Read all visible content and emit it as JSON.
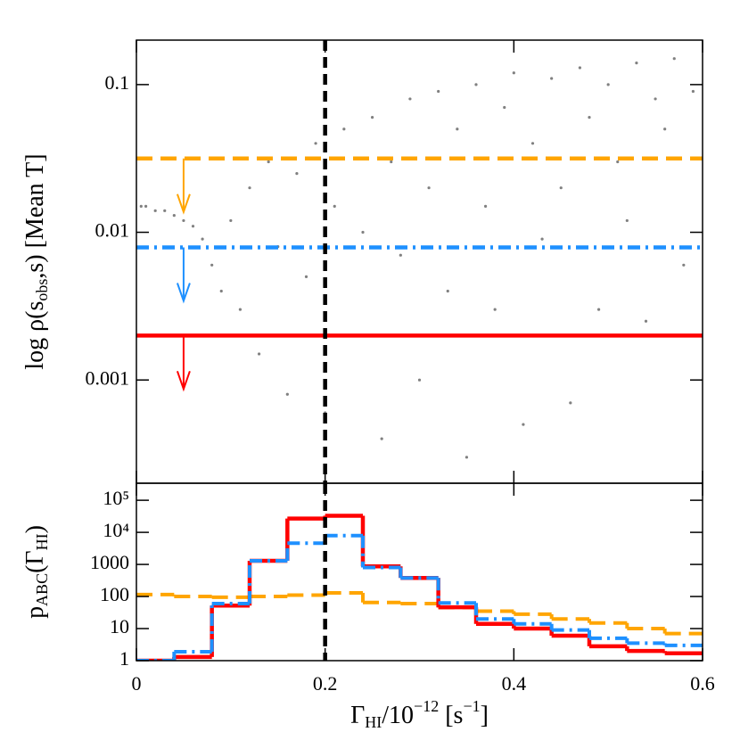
{
  "chart_data": [
    {
      "type": "scatter",
      "ylabel": [
        "log ρ(s",
        "obs",
        ",s)  [Mean T]"
      ],
      "xlim": [
        0,
        0.6
      ],
      "xticks": [
        0,
        0.2,
        0.4,
        0.6
      ],
      "ylim": [
        0.0002,
        0.2
      ],
      "yticks": [
        0.001,
        0.01,
        0.1
      ],
      "log_y": true,
      "vline": 0.2,
      "series": [
        {
          "color": "#808080",
          "x": [
            0.005,
            0.01,
            0.02,
            0.03,
            0.04,
            0.05,
            0.06,
            0.07,
            0.08,
            0.09,
            0.1,
            0.11,
            0.12,
            0.13,
            0.14,
            0.15,
            0.16,
            0.17,
            0.18,
            0.19,
            0.2,
            0.21,
            0.22,
            0.23,
            0.24,
            0.25,
            0.26,
            0.27,
            0.28,
            0.29,
            0.3,
            0.31,
            0.32,
            0.33,
            0.34,
            0.35,
            0.36,
            0.37,
            0.38,
            0.39,
            0.4,
            0.41,
            0.42,
            0.43,
            0.44,
            0.45,
            0.46,
            0.47,
            0.48,
            0.49,
            0.5,
            0.51,
            0.52,
            0.53,
            0.54,
            0.55,
            0.56,
            0.57,
            0.58,
            0.59
          ],
          "values": [
            0.015,
            0.015,
            0.014,
            0.014,
            0.013,
            0.012,
            0.011,
            0.009,
            0.006,
            0.004,
            0.012,
            0.003,
            0.02,
            0.0015,
            0.03,
            0.008,
            0.0008,
            0.025,
            0.005,
            0.04,
            0.0006,
            0.015,
            0.05,
            0.002,
            0.01,
            0.06,
            0.0004,
            0.03,
            0.007,
            0.08,
            0.001,
            0.02,
            0.09,
            0.004,
            0.05,
            0.0003,
            0.1,
            0.015,
            0.003,
            0.07,
            0.12,
            0.0005,
            0.04,
            0.009,
            0.11,
            0.02,
            0.0007,
            0.13,
            0.06,
            0.003,
            0.1,
            0.03,
            0.012,
            0.14,
            0.0025,
            0.08,
            0.05,
            0.15,
            0.006,
            0.09
          ]
        }
      ],
      "thresholds": [
        {
          "value": 0.0316,
          "color": "#ffa500",
          "style": "dashed",
          "arrow_x": 0.05
        },
        {
          "value": 0.0079,
          "color": "#1e90ff",
          "style": "dashdot",
          "arrow_x": 0.05
        },
        {
          "value": 0.002,
          "color": "#ff0000",
          "style": "solid",
          "arrow_x": 0.05
        }
      ]
    },
    {
      "type": "histogram",
      "ylabel": [
        "p",
        "ABC",
        "(Γ",
        "HI",
        ")"
      ],
      "xlabel": [
        "Γ",
        "HI",
        "/10",
        "−12",
        "  [s",
        "−1",
        "]"
      ],
      "xlim": [
        0,
        0.6
      ],
      "xticks": [
        0,
        0.2,
        0.4,
        0.6
      ],
      "ylim": [
        1,
        340000
      ],
      "log_y": true,
      "yticks": [
        1,
        10,
        100,
        1000,
        {
          "value": 10000,
          "label": "10⁴"
        },
        {
          "value": 100000,
          "label": "10⁵"
        }
      ],
      "vline": 0.2,
      "bins": [
        0,
        0.04,
        0.08,
        0.12,
        0.16,
        0.2,
        0.24,
        0.28,
        0.32,
        0.36,
        0.4,
        0.44,
        0.48,
        0.52,
        0.56,
        0.6
      ],
      "series": [
        {
          "color": "#ffa500",
          "style": "dashed",
          "values": [
            115,
            100,
            95,
            100,
            110,
            130,
            65,
            60,
            45,
            35,
            28,
            20,
            15,
            10,
            7
          ]
        },
        {
          "color": "#ff0000",
          "style": "solid",
          "values": [
            1,
            1.3,
            52,
            1300,
            27000,
            33000,
            870,
            380,
            46,
            14,
            10,
            6,
            2.8,
            2,
            1.7
          ]
        },
        {
          "color": "#1e90ff",
          "style": "dashdot",
          "values": [
            1,
            1.9,
            60,
            1300,
            4600,
            7900,
            800,
            380,
            63,
            20,
            14,
            9,
            5,
            3.5,
            3
          ]
        }
      ]
    }
  ]
}
